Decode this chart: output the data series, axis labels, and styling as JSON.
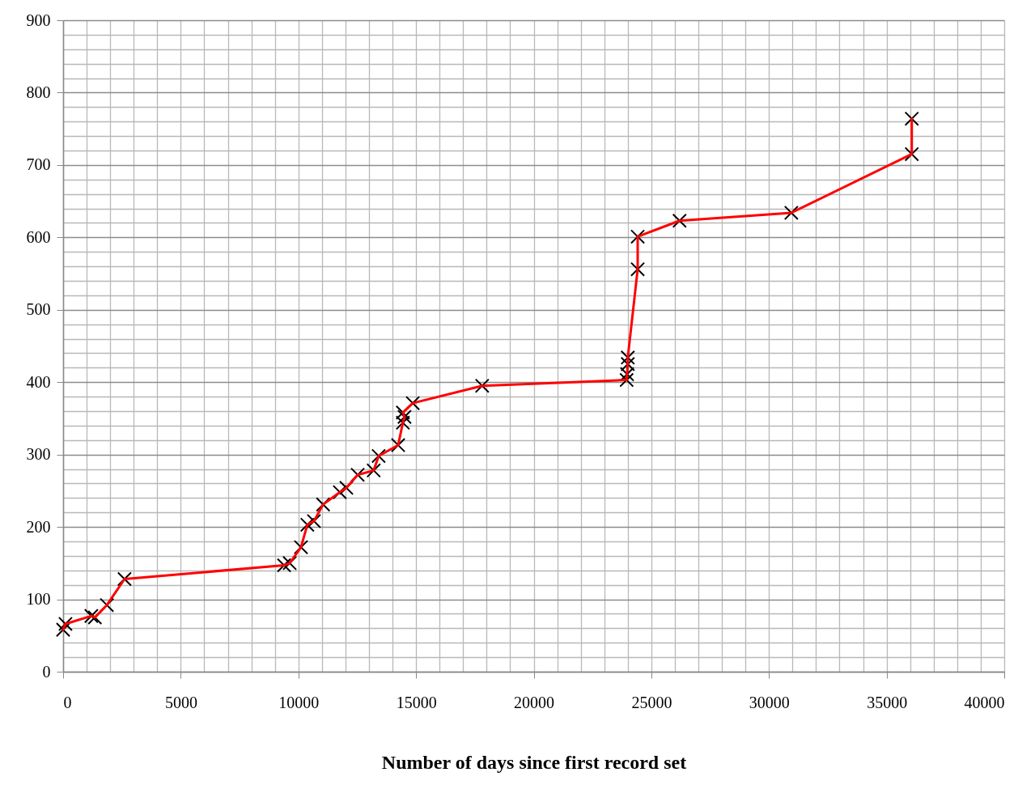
{
  "chart_data": {
    "type": "line",
    "xlabel": "Number of days since first record set",
    "series": [
      {
        "color": "#ff0000",
        "x": [
          0,
          100,
          1200,
          1350,
          1860,
          2610,
          9390,
          9630,
          10110,
          10380,
          10660,
          11050,
          11760,
          12040,
          12520,
          13200,
          13410,
          14240,
          14440,
          14510,
          14440,
          14860,
          17810,
          23950,
          23970,
          24000,
          24000,
          24420,
          24420,
          26200,
          30950,
          36070,
          36070
        ],
        "values": [
          58,
          66,
          77,
          75,
          92,
          128,
          147,
          150,
          172,
          203,
          208,
          231,
          248,
          254,
          272,
          278,
          298,
          313,
          344,
          352,
          358,
          371,
          395,
          403,
          411,
          425,
          434,
          556,
          601,
          623,
          634,
          715,
          764
        ]
      }
    ],
    "xlim": [
      0,
      40000
    ],
    "xticks": [
      0,
      5000,
      10000,
      15000,
      20000,
      25000,
      30000,
      35000,
      40000
    ],
    "ylim": [
      0,
      900
    ],
    "yticks": [
      0,
      100,
      200,
      300,
      400,
      500,
      600,
      700,
      800,
      900
    ],
    "grid": true,
    "marker": "cross",
    "line_style": "solid"
  }
}
